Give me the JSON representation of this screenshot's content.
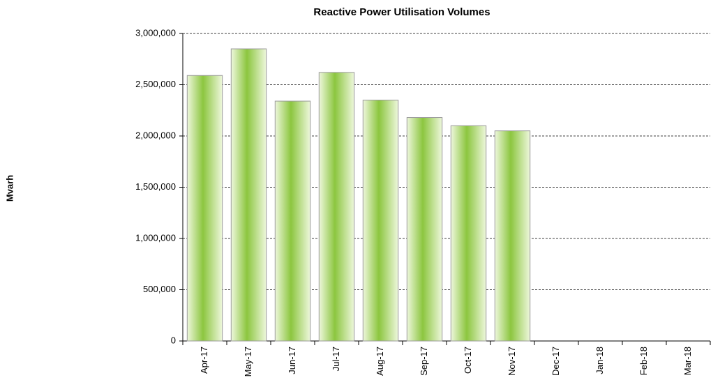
{
  "chart_data": {
    "type": "bar",
    "title": "Reactive Power Utilisation  Volumes",
    "y_label": "Mvarh",
    "categories": [
      "Apr-17",
      "May-17",
      "Jun-17",
      "Jul-17",
      "Aug-17",
      "Sep-17",
      "Oct-17",
      "Nov-17",
      "Dec-17",
      "Jan-18",
      "Feb-18",
      "Mar-18"
    ],
    "values": [
      2590000,
      2850000,
      2340000,
      2620000,
      2350000,
      2180000,
      2100000,
      2050000,
      null,
      null,
      null,
      null
    ],
    "color": "#8cc63f",
    "ylim": [
      0,
      3000000
    ],
    "yticks": [
      0,
      {
        "value": 500000,
        "label": "500,000"
      },
      {
        "value": 1000000,
        "label": "1,000,000"
      },
      {
        "value": 1500000,
        "label": "1,500,000"
      },
      {
        "value": 2000000,
        "label": "2,000,000"
      },
      {
        "value": 2500000,
        "label": "2,500,000"
      },
      {
        "value": 3000000,
        "label": "3,000,000"
      }
    ],
    "grid": true
  }
}
